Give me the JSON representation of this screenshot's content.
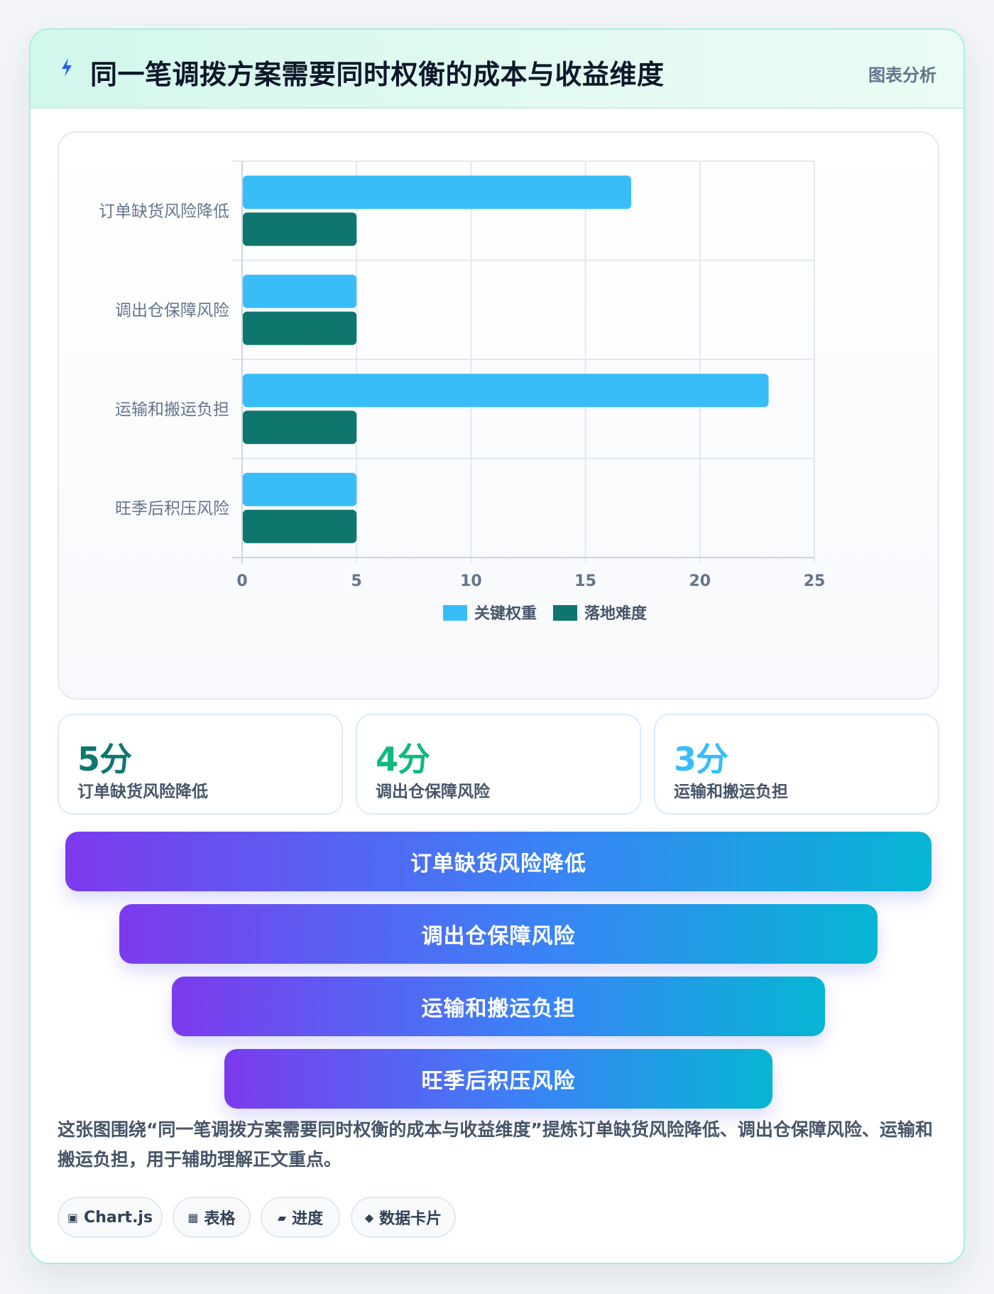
{
  "header": {
    "title": "同一笔调拨方案需要同时权衡的成本与收益维度",
    "tag": "图表分析"
  },
  "chart_data": {
    "type": "bar",
    "orientation": "horizontal",
    "categories": [
      "订单缺货风险降低",
      "调出仓保障风险",
      "运输和搬运负担",
      "旺季后积压风险"
    ],
    "series": [
      {
        "name": "关键权重",
        "values": [
          17,
          5,
          23,
          5
        ],
        "color": "#38bdf8"
      },
      {
        "name": "落地难度",
        "values": [
          5,
          5,
          5,
          5
        ],
        "color": "#0f766e"
      }
    ],
    "xlim": [
      0,
      25
    ],
    "xticks": [
      0,
      5,
      10,
      15,
      20,
      25
    ],
    "grid": true,
    "legend": "bottom-center"
  },
  "stats": [
    {
      "value": "5分",
      "label": "订单缺货风险降低",
      "color": "#0f766e"
    },
    {
      "value": "4分",
      "label": "调出仓保障风险",
      "color": "#10b981"
    },
    {
      "value": "3分",
      "label": "运输和搬运负担",
      "color": "#38bdf8"
    }
  ],
  "funnel": [
    "订单缺货风险降低",
    "调出仓保障风险",
    "运输和搬运负担",
    "旺季后积压风险"
  ],
  "description": "这张图围绕“同一笔调拨方案需要同时权衡的成本与收益维度”提炼订单缺货风险降低、调出仓保障风险、运输和搬运负担，用于辅助理解正文重点。",
  "chips": [
    {
      "icon": "▣",
      "icon_name": "chart-icon",
      "label": "Chart.js"
    },
    {
      "icon": "▦",
      "icon_name": "table-icon",
      "label": "表格"
    },
    {
      "icon": "▰",
      "icon_name": "progress-icon",
      "label": "进度"
    },
    {
      "icon": "◆",
      "icon_name": "diamond-icon",
      "label": "数据卡片"
    }
  ]
}
